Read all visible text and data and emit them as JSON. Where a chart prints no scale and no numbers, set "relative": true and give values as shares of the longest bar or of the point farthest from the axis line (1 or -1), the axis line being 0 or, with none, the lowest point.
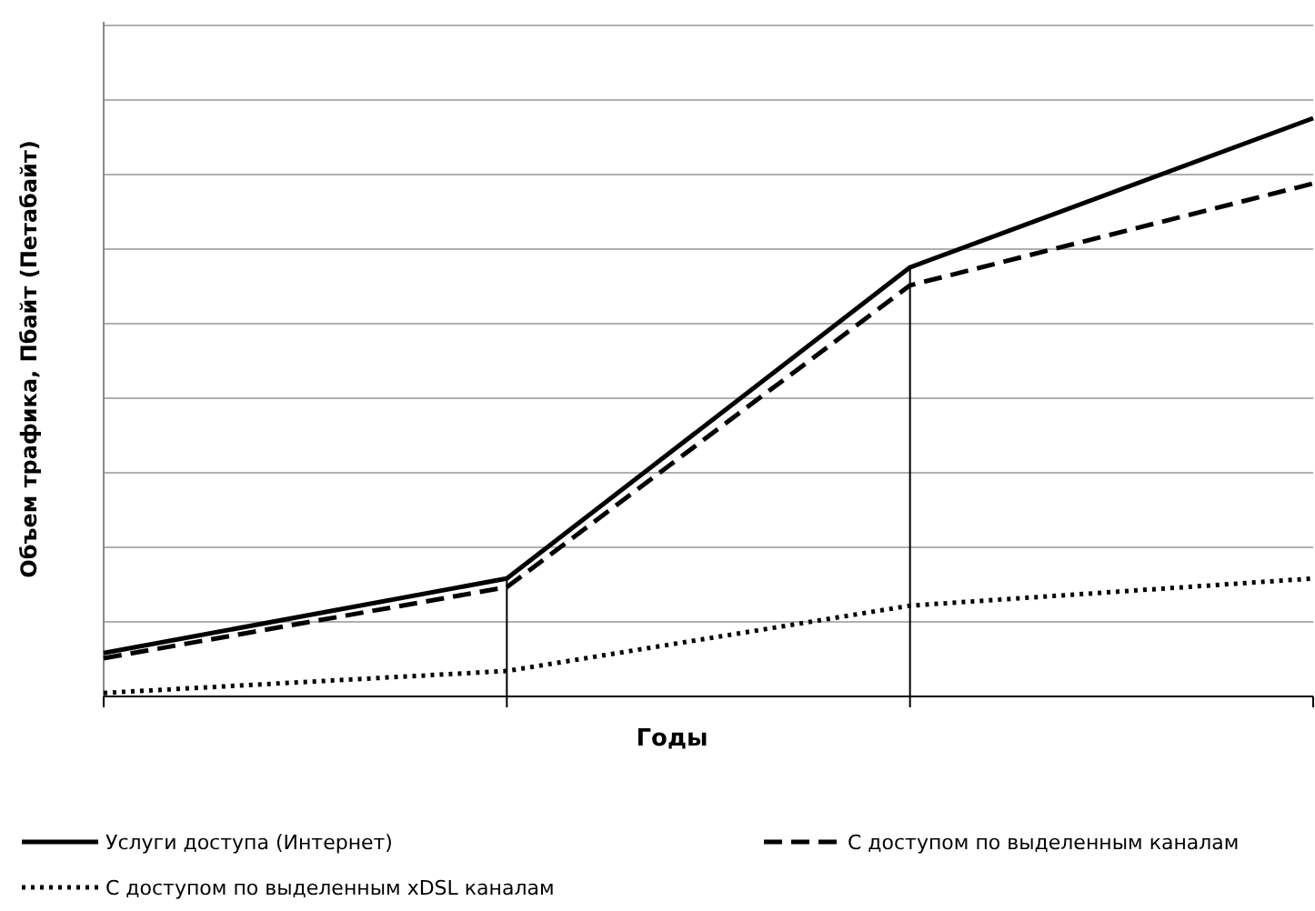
{
  "chart_data": {
    "type": "line",
    "relative": true,
    "xlabel": "Годы",
    "ylabel": "Объем трафика, Пбайт (Петабайт)",
    "categories": [
      null,
      null,
      null,
      null
    ],
    "grid": "y",
    "legend": "bottom",
    "marker": "none",
    "series": [
      {
        "name": "Услуги доступа (Интернет)",
        "color": "#000000",
        "line_style": "solid",
        "values": [
          0.075,
          0.204,
          0.742,
          1
        ]
      },
      {
        "name": "С доступом по выделенным каналам",
        "color": "#000000",
        "line_style": "dashed",
        "values": [
          0.066,
          0.189,
          0.711,
          0.887
        ]
      },
      {
        "name": "С доступом по выделенным xDSL каналам",
        "color": "#000000",
        "line_style": "dotted",
        "values": [
          0.006,
          0.044,
          0.157,
          0.204
        ]
      }
    ]
  }
}
